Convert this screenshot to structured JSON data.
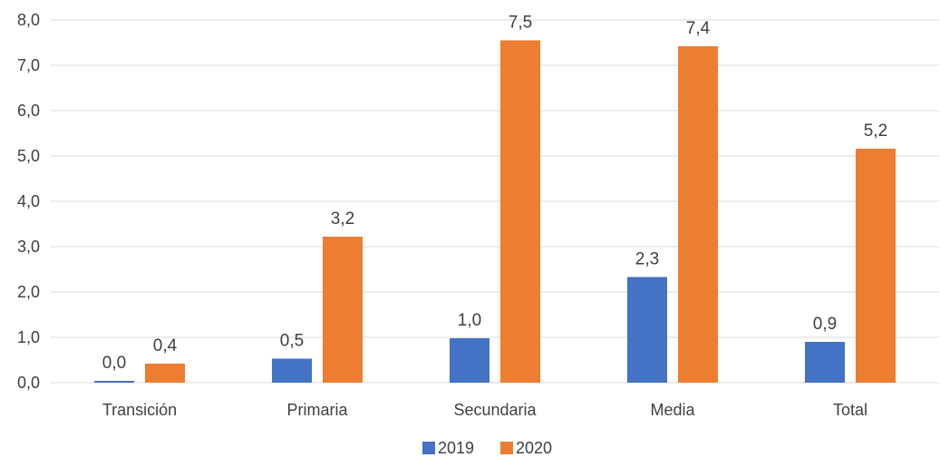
{
  "colors": {
    "s2019": "#4472C4",
    "s2020": "#ED7D31"
  },
  "chart_data": {
    "type": "bar",
    "title": "",
    "xlabel": "",
    "ylabel": "",
    "ylim": [
      0,
      8
    ],
    "yticks": [
      0,
      1,
      2,
      3,
      4,
      5,
      6,
      7,
      8
    ],
    "ytick_labels": [
      "0,0",
      "1,0",
      "2,0",
      "3,0",
      "4,0",
      "5,0",
      "6,0",
      "7,0",
      "8,0"
    ],
    "grid": true,
    "legend_position": "bottom-center",
    "categories": [
      "Transición",
      "Primaria",
      "Secundaria",
      "Media",
      "Total"
    ],
    "series": [
      {
        "name": "2019",
        "values": [
          0.04,
          0.53,
          0.98,
          2.33,
          0.9
        ],
        "labels": [
          "0,0",
          "0,5",
          "1,0",
          "2,3",
          "0,9"
        ]
      },
      {
        "name": "2020",
        "values": [
          0.42,
          3.22,
          7.55,
          7.42,
          5.16
        ],
        "labels": [
          "0,4",
          "3,2",
          "7,5",
          "7,4",
          "5,2"
        ]
      }
    ]
  }
}
